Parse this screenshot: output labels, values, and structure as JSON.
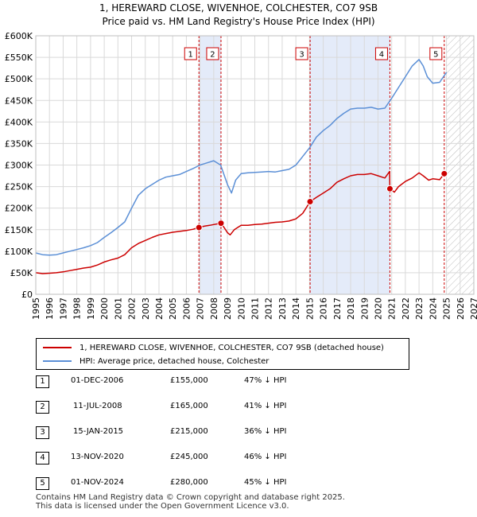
{
  "chart_data": {
    "type": "line",
    "title": "1, HEREWARD CLOSE, WIVENHOE, COLCHESTER, CO7 9SB",
    "subtitle": "Price paid vs. HM Land Registry's House Price Index (HPI)",
    "xlim": [
      1995,
      2027
    ],
    "ylim": [
      0,
      600000
    ],
    "x_ticks": [
      "1995",
      "1996",
      "1997",
      "1998",
      "1999",
      "2000",
      "2001",
      "2002",
      "2003",
      "2004",
      "2005",
      "2006",
      "2007",
      "2008",
      "2009",
      "2010",
      "2011",
      "2012",
      "2013",
      "2014",
      "2015",
      "2016",
      "2017",
      "2018",
      "2019",
      "2020",
      "2021",
      "2022",
      "2023",
      "2024",
      "2025",
      "2026",
      "2027"
    ],
    "y_ticks": [
      {
        "value": 0,
        "label": "£0"
      },
      {
        "value": 50000,
        "label": "£50K"
      },
      {
        "value": 100000,
        "label": "£100K"
      },
      {
        "value": 150000,
        "label": "£150K"
      },
      {
        "value": 200000,
        "label": "£200K"
      },
      {
        "value": 250000,
        "label": "£250K"
      },
      {
        "value": 300000,
        "label": "£300K"
      },
      {
        "value": 350000,
        "label": "£350K"
      },
      {
        "value": 400000,
        "label": "£400K"
      },
      {
        "value": 450000,
        "label": "£450K"
      },
      {
        "value": 500000,
        "label": "£500K"
      },
      {
        "value": 550000,
        "label": "£550K"
      },
      {
        "value": 600000,
        "label": "£600K"
      }
    ],
    "grid": true,
    "shaded_periods": [
      [
        2006.92,
        2008.53
      ],
      [
        2015.04,
        2020.87
      ]
    ],
    "future_hatch_from": 2025.0,
    "series": [
      {
        "name": "1, HEREWARD CLOSE, WIVENHOE, COLCHESTER, CO7 9SB (detached house)",
        "color": "#cc0000",
        "x": [
          1995.0,
          1995.5,
          1996.0,
          1996.5,
          1997.0,
          1997.5,
          1998.0,
          1998.5,
          1999.0,
          1999.5,
          2000.0,
          2000.5,
          2001.0,
          2001.5,
          2002.0,
          2002.5,
          2003.0,
          2003.5,
          2004.0,
          2004.5,
          2005.0,
          2005.5,
          2006.0,
          2006.5,
          2006.92,
          2007.3,
          2007.7,
          2008.0,
          2008.53,
          2008.8,
          2009.0,
          2009.2,
          2009.5,
          2010.0,
          2010.5,
          2011.0,
          2011.5,
          2012.0,
          2012.5,
          2013.0,
          2013.5,
          2014.0,
          2014.5,
          2015.04,
          2015.5,
          2016.0,
          2016.5,
          2017.0,
          2017.5,
          2018.0,
          2018.5,
          2019.0,
          2019.5,
          2020.0,
          2020.5,
          2020.85,
          2020.87,
          2021.2,
          2021.5,
          2022.0,
          2022.5,
          2023.0,
          2023.3,
          2023.7,
          2024.0,
          2024.5,
          2024.84,
          2025.0
        ],
        "values": [
          50000,
          48000,
          49000,
          50000,
          52000,
          55000,
          58000,
          61000,
          63000,
          68000,
          75000,
          80000,
          84000,
          92000,
          108000,
          118000,
          125000,
          132000,
          138000,
          141000,
          144000,
          146000,
          148000,
          151000,
          155000,
          158000,
          160000,
          162000,
          165000,
          153000,
          143000,
          138000,
          150000,
          160000,
          160000,
          162000,
          163000,
          165000,
          167000,
          168000,
          170000,
          175000,
          188000,
          215000,
          225000,
          235000,
          245000,
          260000,
          268000,
          275000,
          278000,
          278000,
          280000,
          275000,
          270000,
          285000,
          245000,
          237000,
          250000,
          262000,
          270000,
          282000,
          275000,
          265000,
          268000,
          266000,
          280000,
          283000
        ]
      },
      {
        "name": "HPI: Average price, detached house, Colchester",
        "color": "#5b8fd6",
        "x": [
          1995.0,
          1995.5,
          1996.0,
          1996.5,
          1997.0,
          1997.5,
          1998.0,
          1998.5,
          1999.0,
          1999.5,
          2000.0,
          2000.5,
          2001.0,
          2001.5,
          2002.0,
          2002.5,
          2003.0,
          2003.5,
          2004.0,
          2004.5,
          2005.0,
          2005.5,
          2006.0,
          2006.5,
          2007.0,
          2007.5,
          2008.0,
          2008.5,
          2009.0,
          2009.3,
          2009.6,
          2010.0,
          2010.5,
          2011.0,
          2011.5,
          2012.0,
          2012.5,
          2013.0,
          2013.5,
          2014.0,
          2014.5,
          2015.0,
          2015.5,
          2016.0,
          2016.5,
          2017.0,
          2017.5,
          2018.0,
          2018.5,
          2019.0,
          2019.5,
          2020.0,
          2020.5,
          2021.0,
          2021.5,
          2022.0,
          2022.5,
          2023.0,
          2023.3,
          2023.6,
          2024.0,
          2024.5,
          2025.0
        ],
        "values": [
          96000,
          92000,
          91000,
          92000,
          96000,
          100000,
          104000,
          108000,
          113000,
          120000,
          132000,
          143000,
          155000,
          168000,
          200000,
          230000,
          245000,
          255000,
          265000,
          272000,
          275000,
          278000,
          285000,
          292000,
          300000,
          305000,
          310000,
          300000,
          255000,
          235000,
          265000,
          280000,
          282000,
          283000,
          284000,
          285000,
          284000,
          287000,
          290000,
          300000,
          320000,
          340000,
          365000,
          380000,
          392000,
          408000,
          420000,
          430000,
          432000,
          432000,
          434000,
          430000,
          432000,
          455000,
          480000,
          505000,
          530000,
          545000,
          530000,
          505000,
          490000,
          492000,
          515000
        ]
      }
    ],
    "sales": [
      {
        "label": "1",
        "x": 2006.92,
        "value": 155000
      },
      {
        "label": "2",
        "x": 2008.53,
        "value": 165000
      },
      {
        "label": "3",
        "x": 2015.04,
        "value": 215000
      },
      {
        "label": "4",
        "x": 2020.87,
        "value": 245000
      },
      {
        "label": "5",
        "x": 2024.84,
        "value": 280000
      }
    ]
  },
  "legend": {
    "property_label": "1, HEREWARD CLOSE, WIVENHOE, COLCHESTER, CO7 9SB (detached house)",
    "hpi_label": "HPI: Average price, detached house, Colchester",
    "property_color": "#cc0000",
    "hpi_color": "#5b8fd6"
  },
  "sales_table": [
    {
      "num": "1",
      "date": "01-DEC-2006",
      "price": "£155,000",
      "hpi": "47% ↓ HPI"
    },
    {
      "num": "2",
      "date": "11-JUL-2008",
      "price": "£165,000",
      "hpi": "41% ↓ HPI"
    },
    {
      "num": "3",
      "date": "15-JAN-2015",
      "price": "£215,000",
      "hpi": "36% ↓ HPI"
    },
    {
      "num": "4",
      "date": "13-NOV-2020",
      "price": "£245,000",
      "hpi": "46% ↓ HPI"
    },
    {
      "num": "5",
      "date": "01-NOV-2024",
      "price": "£280,000",
      "hpi": "45% ↓ HPI"
    }
  ],
  "footer": {
    "line1": "Contains HM Land Registry data © Crown copyright and database right 2025.",
    "line2": "This data is licensed under the Open Government Licence v3.0."
  }
}
